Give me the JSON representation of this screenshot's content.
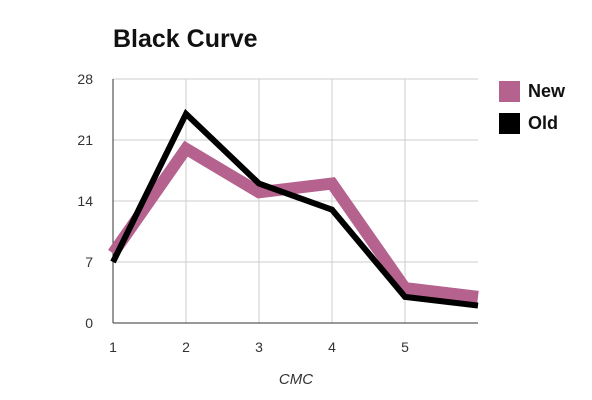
{
  "chart_data": {
    "type": "line",
    "title": "Black Curve",
    "xlabel": "CMC",
    "ylabel": "",
    "x": [
      1,
      2,
      3,
      4,
      5,
      6
    ],
    "x_ticks": [
      1,
      2,
      3,
      4,
      5
    ],
    "xlim": [
      1,
      6
    ],
    "ylim": [
      0,
      28
    ],
    "y_ticks": [
      0,
      7,
      14,
      21,
      28
    ],
    "grid": true,
    "legend_position": "right",
    "series": [
      {
        "name": "New",
        "color": "#b5628e",
        "values": [
          8,
          20,
          15,
          16,
          4,
          3
        ]
      },
      {
        "name": "Old",
        "color": "#000000",
        "values": [
          7,
          24,
          16,
          13,
          3,
          2
        ]
      }
    ]
  }
}
